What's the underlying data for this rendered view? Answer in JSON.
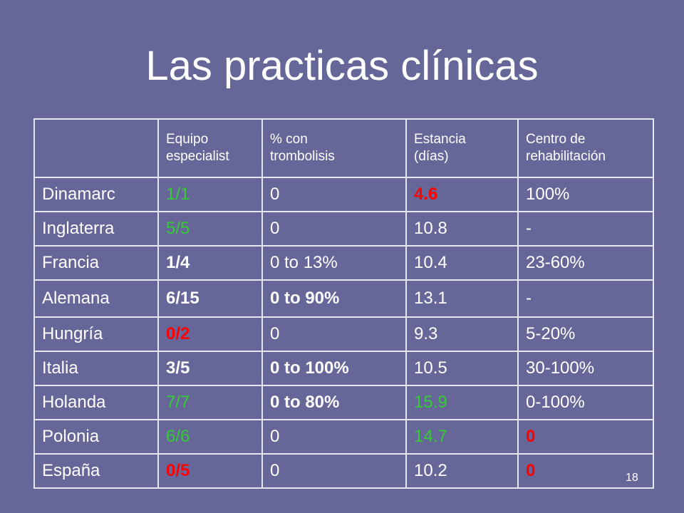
{
  "title": "Las practicas clínicas",
  "page_number": "18",
  "table": {
    "headers": [
      [
        ""
      ],
      [
        "Equipo",
        "especialist"
      ],
      [
        "% con",
        "trombolisis"
      ],
      [
        "Estancia",
        "(días)"
      ],
      [
        "Centro de",
        "rehabilitación"
      ]
    ],
    "rows": [
      {
        "cells": [
          {
            "text": "Dinamarc"
          },
          {
            "text": "1/1",
            "color": "green"
          },
          {
            "text": "0"
          },
          {
            "text": "4.6",
            "color": "red",
            "bold": true
          },
          {
            "text": "100%"
          }
        ]
      },
      {
        "cells": [
          {
            "text": "Inglaterra"
          },
          {
            "text": "5/5",
            "color": "green"
          },
          {
            "text": "0"
          },
          {
            "text": "10.8"
          },
          {
            "text": "-"
          }
        ]
      },
      {
        "cells": [
          {
            "text": "Francia"
          },
          {
            "text": "1/4",
            "bold": true
          },
          {
            "text": "0 to 13%"
          },
          {
            "text": "10.4"
          },
          {
            "text": "23-60%"
          }
        ]
      },
      {
        "cells": [
          {
            "text": "Alemana"
          },
          {
            "text": "6/15",
            "bold": true
          },
          {
            "text": "0 to 90%",
            "bold": true
          },
          {
            "text": "13.1"
          },
          {
            "text": "-"
          }
        ]
      },
      {
        "cells": [
          {
            "text": "Hungría"
          },
          {
            "text": "0/2",
            "color": "red",
            "bold": true
          },
          {
            "text": "0"
          },
          {
            "text": "9.3"
          },
          {
            "text": "5-20%"
          }
        ]
      },
      {
        "cells": [
          {
            "text": "Italia"
          },
          {
            "text": "3/5",
            "bold": true
          },
          {
            "text": "0 to 100%",
            "bold": true
          },
          {
            "text": "10.5"
          },
          {
            "text": "30-100%"
          }
        ]
      },
      {
        "cells": [
          {
            "text": "Holanda"
          },
          {
            "text": "7/7",
            "color": "green"
          },
          {
            "text": "0 to 80%",
            "bold": true
          },
          {
            "text": "15.9",
            "color": "green"
          },
          {
            "text": "0-100%"
          }
        ]
      },
      {
        "cells": [
          {
            "text": "Polonia"
          },
          {
            "text": "6/6",
            "color": "green"
          },
          {
            "text": "0"
          },
          {
            "text": "14.7",
            "color": "green"
          },
          {
            "text": "0",
            "color": "red",
            "bold": true
          }
        ]
      },
      {
        "cells": [
          {
            "text": "España"
          },
          {
            "text": "0/5",
            "color": "red",
            "bold": true
          },
          {
            "text": "0"
          },
          {
            "text": "10.2"
          },
          {
            "text": "0",
            "color": "red",
            "bold": true
          }
        ]
      }
    ]
  },
  "colors": {
    "background": "#666699",
    "green": "#33cc33",
    "red": "#ff0000",
    "text": "#ffffff"
  }
}
